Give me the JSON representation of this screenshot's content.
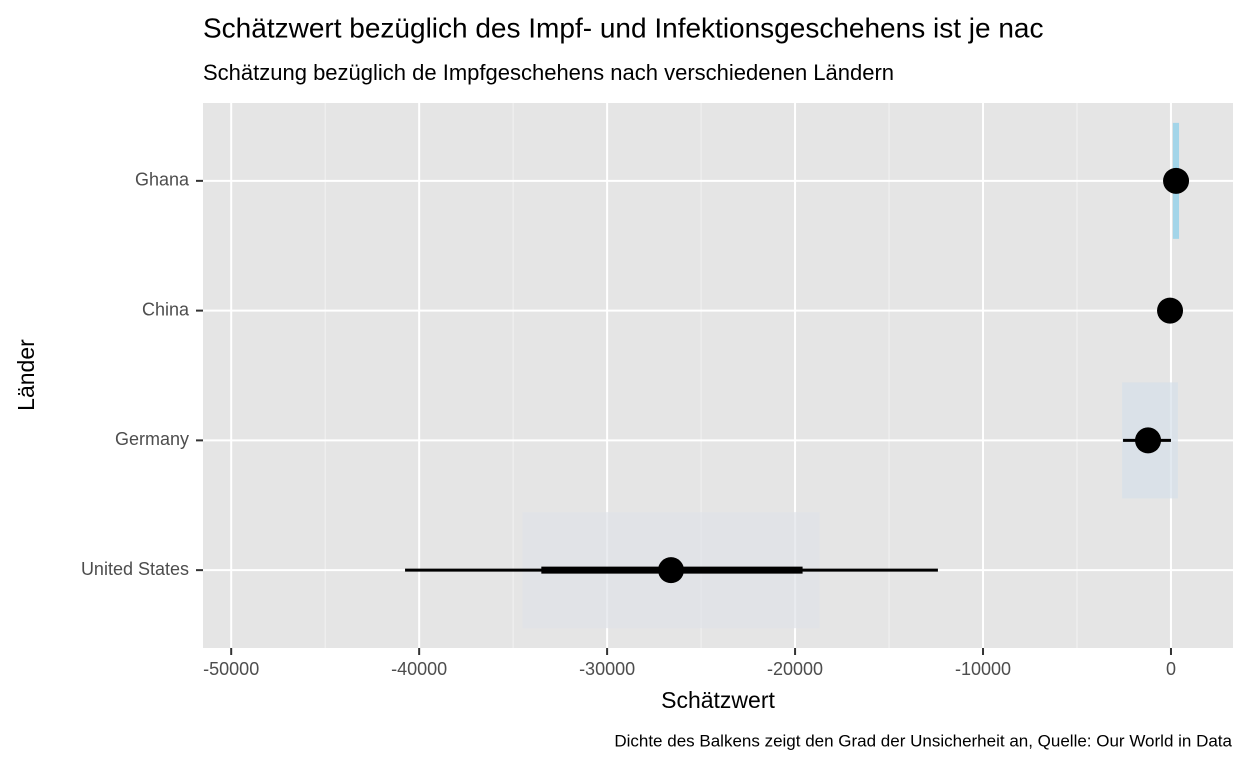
{
  "chart_data": {
    "type": "pointinterval",
    "title": "Schätzwert bezüglich des Impf- und Infektionsgeschehens ist je nac",
    "subtitle": "Schätzung bezüglich de Impfgeschehens nach verschiedenen Ländern",
    "x_label": "Schätzwert",
    "y_label": "Länder",
    "caption": "Dichte des Balkens zeigt den Grad der Unsicherheit an, Quelle: Our World in Data",
    "categories": [
      "United States",
      "Germany",
      "China",
      "Ghana"
    ],
    "values": [
      -26600,
      -1220,
      -50,
      270
    ],
    "inner_lower": [
      -33500,
      -1800,
      null,
      null
    ],
    "inner_upper": [
      -19600,
      -650,
      null,
      null
    ],
    "outer_lower": [
      -40750,
      -2550,
      null,
      null
    ],
    "outer_upper": [
      -12400,
      0,
      null,
      null
    ],
    "density_lower": [
      -34500,
      -2600,
      null,
      100
    ],
    "density_upper": [
      -18700,
      370,
      null,
      430
    ],
    "density_colors": [
      "#dfe3e8",
      "#d6e0e9",
      null,
      "#87ceeb"
    ],
    "color": "#000000",
    "xlim": [
      -51500,
      3300
    ],
    "xticks": [
      -50000,
      -40000,
      -30000,
      -20000,
      -10000,
      0
    ],
    "minor_xticks": [
      -45000,
      -35000,
      -25000,
      -15000,
      -5000
    ],
    "grid": true
  }
}
